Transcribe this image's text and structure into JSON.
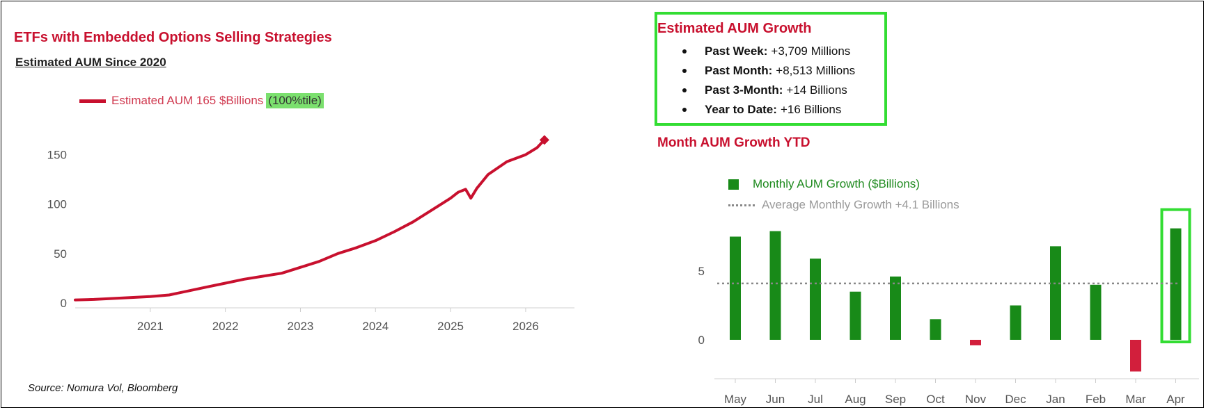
{
  "left_panel": {
    "title": "ETFs with Embedded Options Selling Strategies",
    "subtitle": "Estimated AUM Since 2020",
    "legend_label": "Estimated AUM 165 $Billions",
    "legend_tag": "(100%tile)",
    "source": "Source: Nomura Vol, Bloomberg"
  },
  "right_panel": {
    "growth_title": "Estimated AUM Growth",
    "growth_items": [
      {
        "label": "Past Week:",
        "value": "+3,709 Millions"
      },
      {
        "label": "Past Month:",
        "value": "+8,513 Millions"
      },
      {
        "label": "Past 3-Month:",
        "value": "+14 Billions"
      },
      {
        "label": "Year to Date:",
        "value": "+16 Billions"
      }
    ],
    "monthly_title": "Month AUM Growth YTD",
    "legend_bars": "Monthly AUM Growth ($Billions)",
    "legend_avg": "Average Monthly Growth +4.1 Billions"
  },
  "colors": {
    "line": "#c8102e",
    "positive_bar": "#188a18",
    "negative_bar": "#d21f3c",
    "highlight": "#33dd33",
    "avg_line": "#888888"
  },
  "chart_data": [
    {
      "type": "line",
      "title": "Estimated AUM Since 2020",
      "series": [
        {
          "name": "Estimated AUM 165 $Billions",
          "x": [
            2020.0,
            2020.25,
            2020.5,
            2020.75,
            2021.0,
            2021.25,
            2021.5,
            2021.75,
            2022.0,
            2022.25,
            2022.5,
            2022.75,
            2023.0,
            2023.25,
            2023.5,
            2023.75,
            2024.0,
            2024.25,
            2024.5,
            2024.75,
            2025.0,
            2025.1,
            2025.2,
            2025.27,
            2025.35,
            2025.5,
            2025.75,
            2026.0,
            2026.15,
            2026.25
          ],
          "values": [
            3,
            3.5,
            4.5,
            5.5,
            6.5,
            8,
            12,
            16,
            20,
            24,
            27,
            30,
            36,
            42,
            50,
            56,
            63,
            72,
            82,
            94,
            106,
            112,
            115,
            106,
            116,
            130,
            143,
            150,
            157,
            165
          ]
        }
      ],
      "xticks": [
        "2021",
        "2022",
        "2023",
        "2024",
        "2025",
        "2026"
      ],
      "yticks": [
        0,
        50,
        100,
        150
      ],
      "xlim": [
        2020.0,
        2026.65
      ],
      "ylim": [
        -5,
        180
      ],
      "grid": false,
      "legend": "top-left"
    },
    {
      "type": "bar",
      "title": "Month AUM Growth YTD",
      "categories": [
        "May",
        "Jun",
        "Jul",
        "Aug",
        "Sep",
        "Oct",
        "Nov",
        "Dec",
        "Jan",
        "Feb",
        "Mar",
        "Apr"
      ],
      "series": [
        {
          "name": "Monthly AUM Growth ($Billions)",
          "values": [
            7.5,
            7.9,
            5.9,
            3.5,
            4.6,
            1.5,
            -0.4,
            2.5,
            6.8,
            4.0,
            -2.3,
            8.1
          ]
        }
      ],
      "average": 4.1,
      "average_label": "Average Monthly Growth +4.1 Billions",
      "highlighted": "Apr",
      "yticks": [
        0,
        5
      ],
      "ylim": [
        -3,
        10
      ],
      "grid": false,
      "legend": "top-left"
    }
  ]
}
